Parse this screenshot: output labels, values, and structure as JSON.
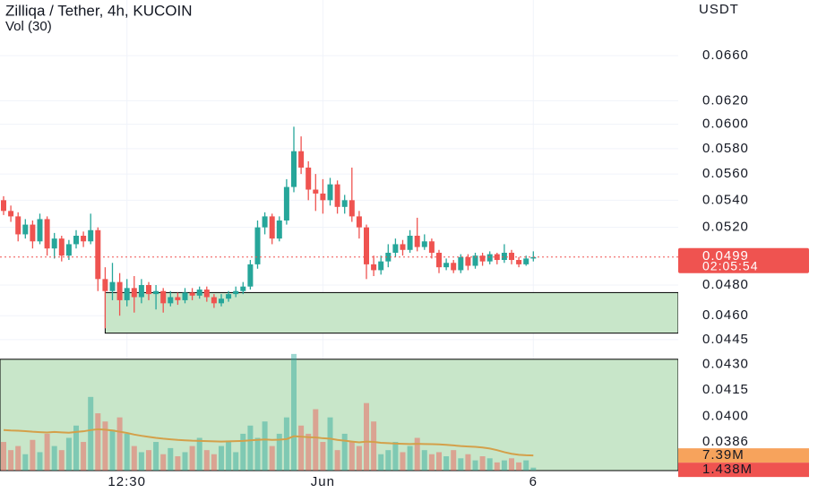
{
  "chart_data": {
    "type": "candlestick",
    "title": "Zilliqa / Tether, 4h, KUCOIN",
    "subtitle": "Vol (30)",
    "y_unit": "USDT",
    "log_scale": true,
    "grid": true,
    "up_color": "#26a69a",
    "down_color": "#ef5350",
    "ylim": [
      0.0371,
      0.0713
    ],
    "yticks": [
      {
        "value": 0.066,
        "label": "0.0660"
      },
      {
        "value": 0.062,
        "label": "0.0620"
      },
      {
        "value": 0.06,
        "label": "0.0600"
      },
      {
        "value": 0.058,
        "label": "0.0580"
      },
      {
        "value": 0.056,
        "label": "0.0560"
      },
      {
        "value": 0.054,
        "label": "0.0540"
      },
      {
        "value": 0.052,
        "label": "0.0520"
      },
      {
        "value": 0.048,
        "label": "0.0480"
      },
      {
        "value": 0.046,
        "label": "0.0460"
      },
      0.0445,
      {
        "value": 0.043,
        "label": "0.0430"
      },
      0.0415,
      {
        "value": 0.04,
        "label": "0.0400"
      },
      0.0386
    ],
    "categories": [
      null,
      null,
      null,
      null,
      null,
      null,
      null,
      null,
      null,
      null,
      null,
      null,
      null,
      null,
      null,
      null,
      null,
      "12:30",
      null,
      null,
      null,
      null,
      null,
      null,
      null,
      null,
      null,
      null,
      null,
      null,
      null,
      null,
      null,
      null,
      null,
      null,
      null,
      null,
      null,
      null,
      null,
      null,
      null,
      null,
      "Jun",
      null,
      null,
      null,
      null,
      null,
      null,
      null,
      null,
      null,
      null,
      null,
      null,
      null,
      null,
      null,
      null,
      null,
      null,
      null,
      null,
      null,
      null,
      null,
      null,
      null,
      null,
      null,
      null,
      "6"
    ],
    "open": [
      0.054,
      0.0532,
      0.0528,
      0.0515,
      0.0522,
      0.051,
      0.0526,
      0.0505,
      0.0512,
      0.05,
      0.0508,
      0.0514,
      0.051,
      0.0518,
      0.0484,
      0.0476,
      0.0482,
      0.047,
      0.0478,
      0.0472,
      0.048,
      0.0474,
      0.0476,
      0.0468,
      0.0472,
      0.047,
      0.0475,
      0.0473,
      0.0477,
      0.0472,
      0.0468,
      0.0471,
      0.0474,
      0.0476,
      0.0479,
      0.0494,
      0.052,
      0.0528,
      0.0512,
      0.0525,
      0.055,
      0.0578,
      0.0565,
      0.0548,
      0.0545,
      0.054,
      0.0552,
      0.0535,
      0.054,
      0.0528,
      0.052,
      0.0494,
      0.049,
      0.0496,
      0.0502,
      0.0508,
      0.0504,
      0.0514,
      0.0506,
      0.051,
      0.0502,
      0.0492,
      0.0495,
      0.049,
      0.0499,
      0.0493,
      0.05,
      0.0496,
      0.0501,
      0.0497,
      0.0502,
      0.0497,
      0.0494,
      0.0498
    ],
    "high": [
      0.0543,
      0.0536,
      0.0531,
      0.0526,
      0.0525,
      0.053,
      0.0528,
      0.0516,
      0.0514,
      0.0511,
      0.0518,
      0.0517,
      0.053,
      0.052,
      0.0492,
      0.0495,
      0.0488,
      0.0484,
      0.0486,
      0.0484,
      0.0482,
      0.048,
      0.0478,
      0.0476,
      0.0475,
      0.0478,
      0.0478,
      0.0479,
      0.0479,
      0.0474,
      0.0474,
      0.0476,
      0.0479,
      0.0482,
      0.0497,
      0.0525,
      0.0531,
      0.053,
      0.0528,
      0.0556,
      0.0598,
      0.059,
      0.057,
      0.056,
      0.0556,
      0.0557,
      0.0555,
      0.0544,
      0.0565,
      0.0532,
      0.0522,
      0.05,
      0.05,
      0.0508,
      0.0512,
      0.0511,
      0.0518,
      0.0527,
      0.0515,
      0.0512,
      0.0504,
      0.0498,
      0.0497,
      0.0501,
      0.0501,
      0.0502,
      0.0502,
      0.0503,
      0.0502,
      0.0508,
      0.0504,
      0.0499,
      0.05,
      0.0503
    ],
    "low": [
      0.0529,
      0.0524,
      0.051,
      0.0512,
      0.0505,
      0.0508,
      0.05,
      0.0498,
      0.0496,
      0.0497,
      0.0505,
      0.0506,
      0.0508,
      0.0476,
      0.0452,
      0.047,
      0.046,
      0.0466,
      0.0462,
      0.0468,
      0.047,
      0.0464,
      0.0462,
      0.0466,
      0.0467,
      0.0468,
      0.047,
      0.0471,
      0.0469,
      0.0465,
      0.0466,
      0.0469,
      0.0472,
      0.0474,
      0.0477,
      0.0491,
      0.0515,
      0.0508,
      0.051,
      0.0522,
      0.0546,
      0.056,
      0.054,
      0.0532,
      0.053,
      0.0536,
      0.053,
      0.053,
      0.0524,
      0.0512,
      0.0484,
      0.0486,
      0.0487,
      0.0492,
      0.0499,
      0.05,
      0.0502,
      0.0503,
      0.0504,
      0.0498,
      0.0488,
      0.049,
      0.0488,
      0.0488,
      0.049,
      0.0491,
      0.0493,
      0.0494,
      0.0494,
      0.0495,
      0.0494,
      0.0492,
      0.0493,
      0.0496
    ],
    "close": [
      0.0532,
      0.0528,
      0.0515,
      0.0522,
      0.051,
      0.0526,
      0.0505,
      0.0512,
      0.05,
      0.0508,
      0.0514,
      0.051,
      0.0518,
      0.0484,
      0.0476,
      0.0482,
      0.047,
      0.0478,
      0.0472,
      0.048,
      0.0474,
      0.0476,
      0.0468,
      0.0472,
      0.047,
      0.0475,
      0.0473,
      0.0477,
      0.0472,
      0.0468,
      0.0471,
      0.0474,
      0.0476,
      0.0479,
      0.0494,
      0.052,
      0.0528,
      0.0512,
      0.0525,
      0.055,
      0.0578,
      0.0565,
      0.0548,
      0.0545,
      0.054,
      0.0552,
      0.0535,
      0.054,
      0.0528,
      0.052,
      0.0494,
      0.049,
      0.0496,
      0.0502,
      0.0508,
      0.0504,
      0.0514,
      0.0506,
      0.051,
      0.0502,
      0.0492,
      0.0495,
      0.049,
      0.0499,
      0.0493,
      0.05,
      0.0496,
      0.0501,
      0.0497,
      0.0502,
      0.0497,
      0.0494,
      0.0498,
      0.0499
    ],
    "last_price": {
      "value": 0.0499,
      "label": "0.0499",
      "countdown": "02:05:54",
      "color": "#ef5350"
    },
    "zones": [
      {
        "start": 14,
        "top": 0.0475,
        "bottom": 0.0449,
        "color": "#c8e6c9"
      },
      {
        "start": 0,
        "top": 0.0433,
        "color": "#c8e6c9"
      }
    ],
    "volume": {
      "ylim": [
        0,
        230
      ],
      "values": [
        14,
        10,
        12,
        8,
        15,
        9,
        18,
        12,
        10,
        16,
        22,
        14,
        36,
        28,
        24,
        20,
        26,
        18,
        12,
        9,
        10,
        14,
        8,
        11,
        7,
        9,
        12,
        16,
        10,
        8,
        12,
        14,
        9,
        18,
        22,
        16,
        24,
        12,
        18,
        26,
        57,
        22,
        18,
        30,
        14,
        26,
        10,
        18,
        14,
        12,
        33,
        24,
        8,
        10,
        14,
        9,
        12,
        16,
        10,
        8,
        9,
        7,
        10,
        6,
        8,
        5,
        7,
        6,
        4,
        5,
        6,
        4,
        5,
        1.438
      ],
      "ma": [
        19.8,
        19.6,
        19.5,
        19.3,
        19.0,
        18.8,
        18.6,
        18.9,
        18.7,
        18.5,
        18.9,
        19.2,
        19.8,
        20.2,
        20.0,
        19.6,
        19.0,
        18.4,
        17.6,
        17.0,
        16.5,
        16.0,
        15.6,
        15.3,
        15.0,
        14.8,
        14.6,
        14.5,
        14.4,
        14.3,
        14.2,
        14.3,
        14.4,
        14.5,
        14.8,
        15.0,
        15.2,
        15.0,
        15.1,
        15.4,
        16.8,
        16.6,
        16.3,
        16.2,
        15.8,
        15.6,
        15.0,
        14.6,
        14.2,
        13.8,
        14.2,
        14.0,
        13.6,
        13.4,
        13.2,
        13.1,
        13.0,
        13.1,
        13.0,
        12.9,
        12.8,
        12.6,
        12.3,
        12.0,
        11.8,
        11.6,
        11.3,
        10.8,
        10.0,
        9.0,
        8.2,
        7.7,
        7.5,
        7.39
      ],
      "ma_color": "#d4a04a",
      "ma_label": "7.39M",
      "last_label": "1.438M"
    }
  }
}
